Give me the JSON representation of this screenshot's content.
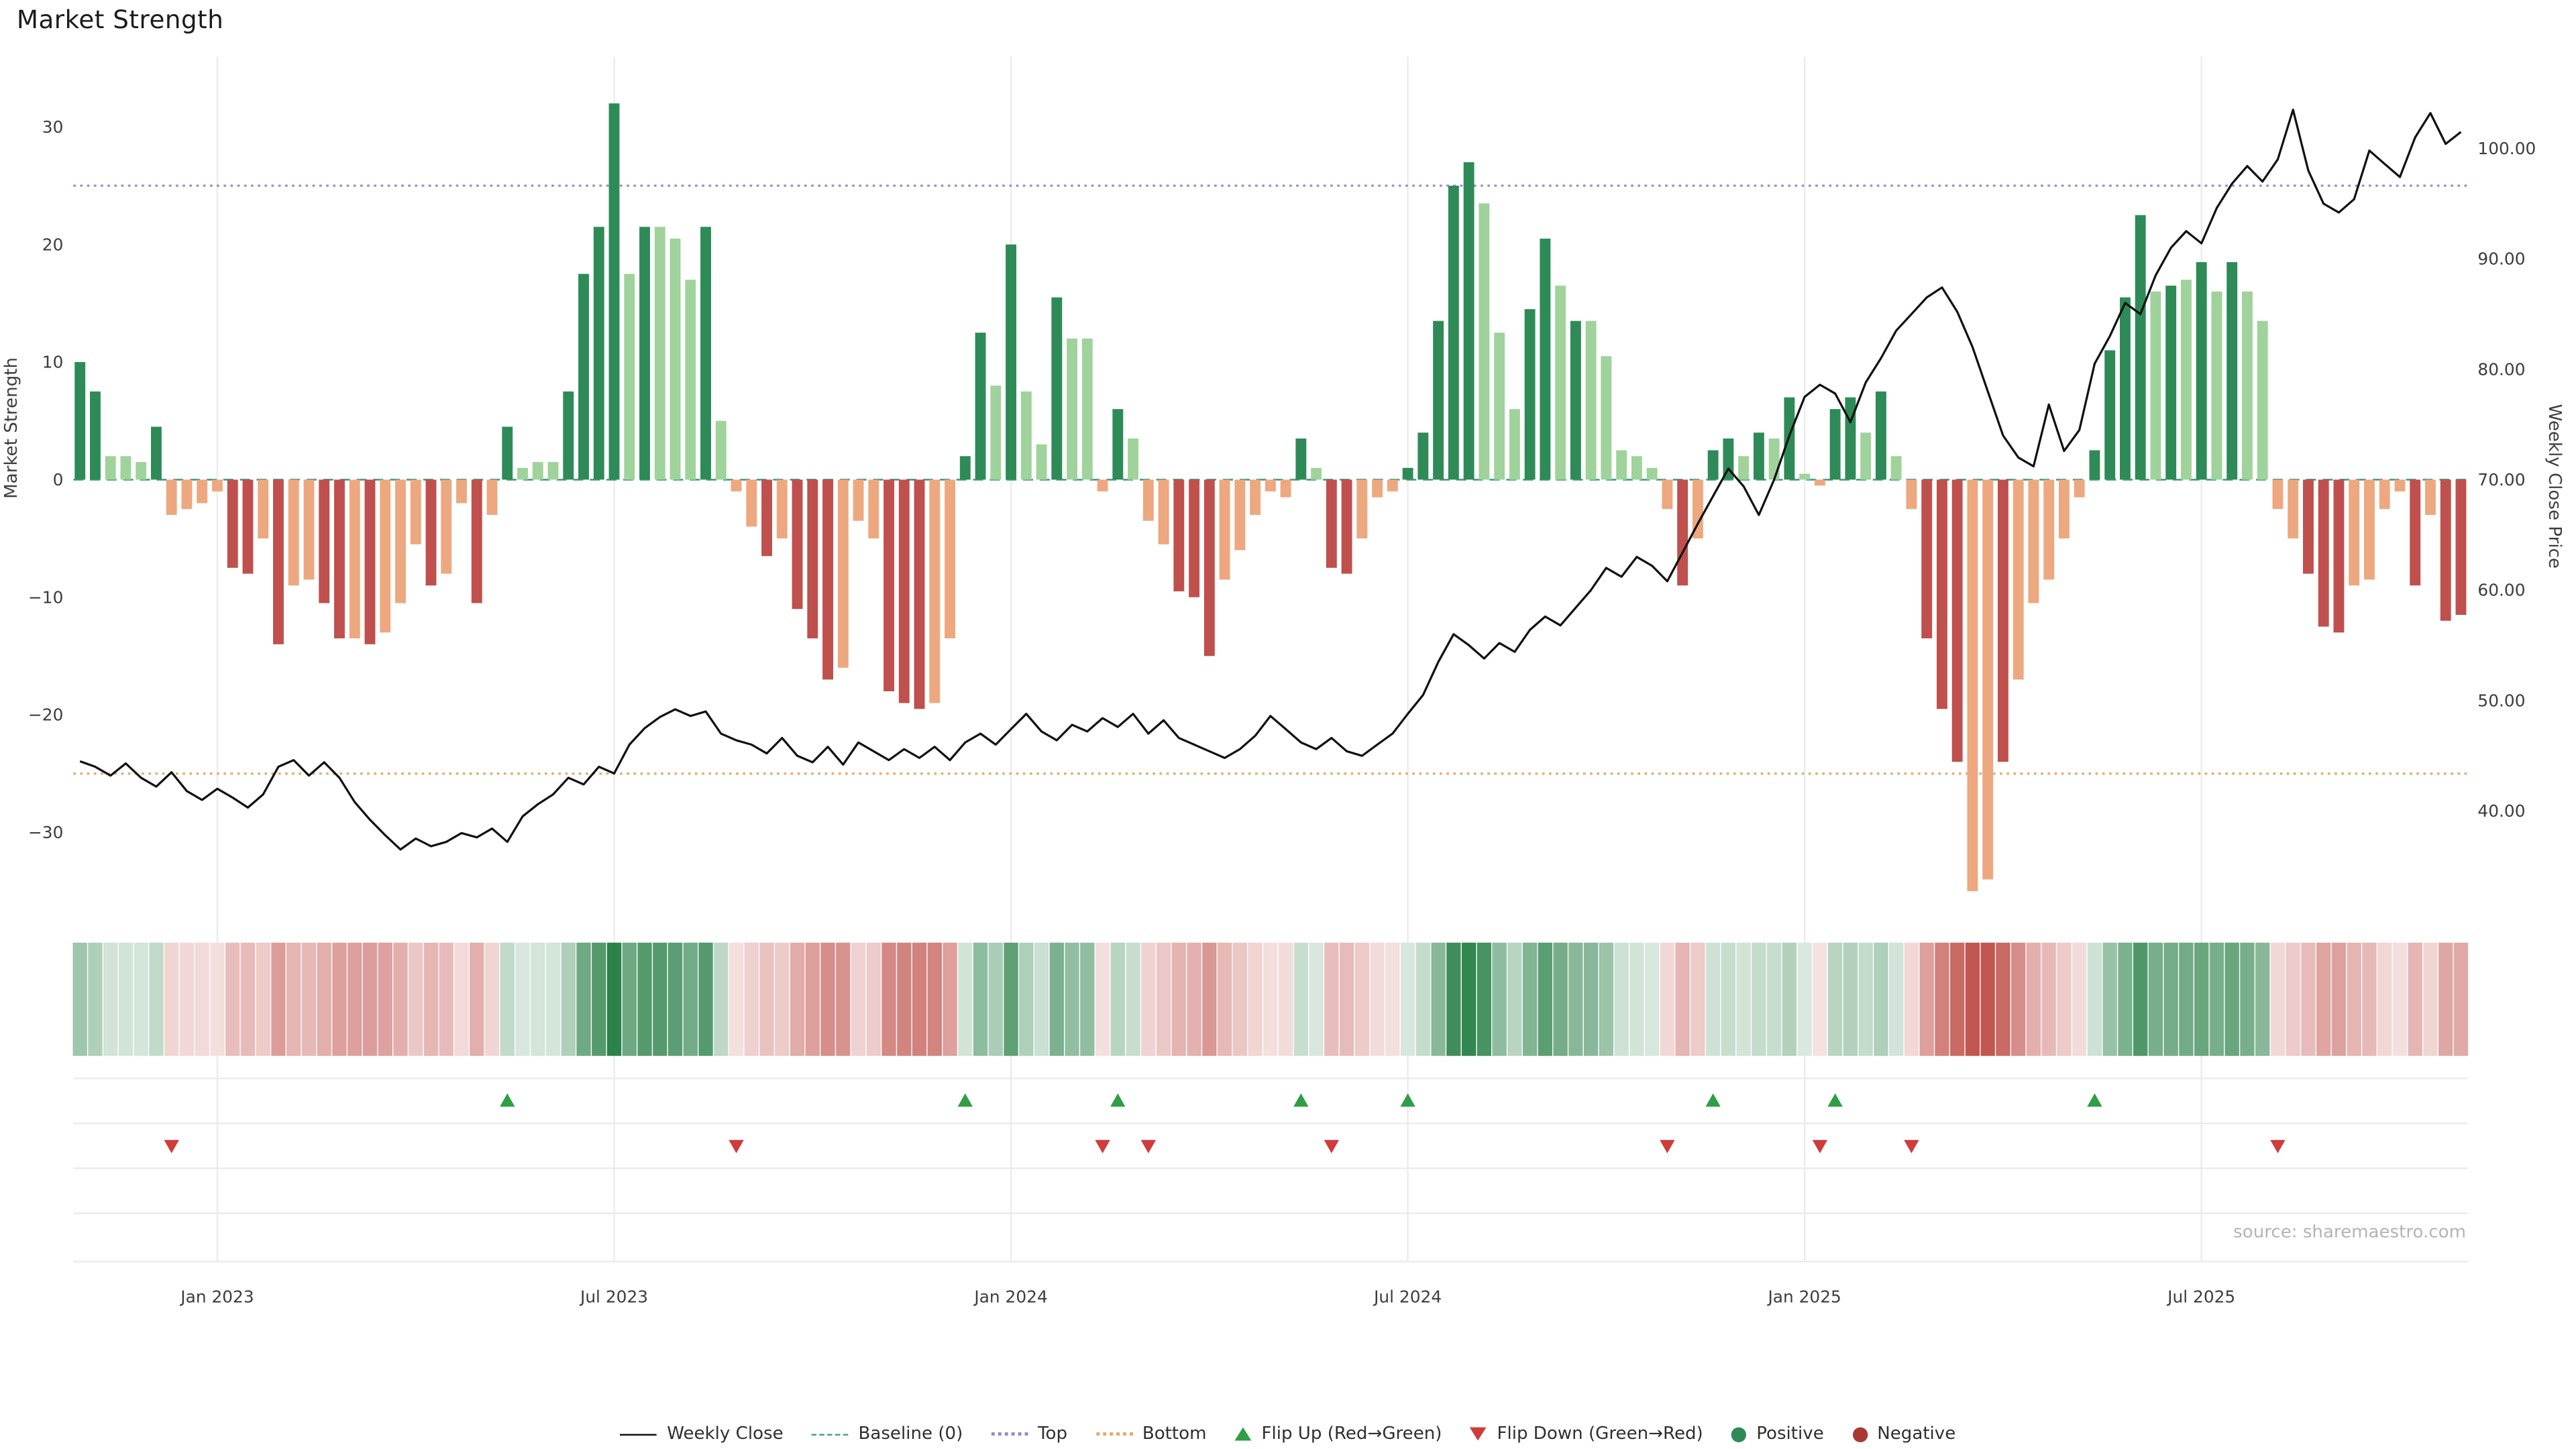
{
  "title": "Market Strength",
  "source": "source: sharemaestro.com",
  "axes": {
    "left_label": "Market Strength",
    "right_label": "Weekly Close Price",
    "left_ticks": [
      {
        "label": "30",
        "value": 30
      },
      {
        "label": "20",
        "value": 20
      },
      {
        "label": "10",
        "value": 10
      },
      {
        "label": "0",
        "value": 0
      },
      {
        "label": "−10",
        "value": -10
      },
      {
        "label": "−20",
        "value": -20
      },
      {
        "label": "−30",
        "value": -30
      }
    ],
    "right_ticks": [
      {
        "label": "100.00",
        "value": 100
      },
      {
        "label": "90.00",
        "value": 90
      },
      {
        "label": "80.00",
        "value": 80
      },
      {
        "label": "70.00",
        "value": 70
      },
      {
        "label": "60.00",
        "value": 60
      },
      {
        "label": "50.00",
        "value": 50
      },
      {
        "label": "40.00",
        "value": 40
      }
    ],
    "x_ticks": [
      {
        "label": "Jan 2023",
        "index": 9
      },
      {
        "label": "Jul 2023",
        "index": 35
      },
      {
        "label": "Jan 2024",
        "index": 61
      },
      {
        "label": "Jul 2024",
        "index": 87
      },
      {
        "label": "Jan 2025",
        "index": 113
      },
      {
        "label": "Jul 2025",
        "index": 139
      }
    ]
  },
  "colors": {
    "positive_strong": "#2e8b57",
    "positive_weak": "#9fd39b",
    "negative_strong": "#c0504d",
    "negative_weak": "#eda87f",
    "weekly_close_line": "#111111",
    "baseline": "#4aa08a",
    "top_line": "#918dcb",
    "bottom_line": "#e3a96d",
    "flip_up": "#2f9e44",
    "flip_down": "#d03b3b",
    "positive_dot": "#2e8b57",
    "negative_dot": "#aa3832",
    "grid": "#ececec"
  },
  "chart_data": {
    "type": "bar+line",
    "title": "Market Strength",
    "ylabel_left": "Market Strength",
    "ylabel_right": "Weekly Close Price",
    "ylim_left": [
      -38,
      36
    ],
    "ylim_right": [
      36.5,
      109
    ],
    "baseline": 0,
    "top_line": 25,
    "bottom_line": -25,
    "n_weeks": 157,
    "strength": [
      10,
      7.5,
      2,
      2,
      1.5,
      4.5,
      -3,
      -2.5,
      -2,
      -1,
      -7.5,
      -8,
      -5,
      -14,
      -9,
      -8.5,
      -10.5,
      -13.5,
      -13.5,
      -14,
      -13,
      -10.5,
      -5.5,
      -9,
      -8,
      -2,
      -10.5,
      -3,
      4.5,
      1,
      1.5,
      1.5,
      7.5,
      17.5,
      21.5,
      32,
      17.5,
      21.5,
      21.5,
      20.5,
      17,
      21.5,
      5,
      -1,
      -4,
      -6.5,
      -5,
      -11,
      -13.5,
      -17,
      -16,
      -3.5,
      -5,
      -18,
      -19,
      -19.5,
      -19,
      -13.5,
      2,
      12.5,
      8,
      20,
      7.5,
      3,
      15.5,
      12,
      12,
      -1,
      6,
      3.5,
      -3.5,
      -5.5,
      -9.5,
      -10,
      -15,
      -8.5,
      -6,
      -3,
      -1,
      -1.5,
      3.5,
      1,
      -7.5,
      -8,
      -5,
      -1.5,
      -1,
      1,
      4,
      13.5,
      25,
      27,
      23.5,
      12.5,
      6,
      14.5,
      20.5,
      16.5,
      13.5,
      13.5,
      10.5,
      2.5,
      2,
      1,
      -2.5,
      -9,
      -5,
      2.5,
      3.5,
      2,
      4,
      3.5,
      7,
      0.5,
      -0.5,
      6,
      7,
      4,
      7.5,
      2,
      -2.5,
      -13.5,
      -19.5,
      -24,
      -35,
      -34,
      -24,
      -17,
      -10.5,
      -8.5,
      -5,
      -1.5,
      2.5,
      11,
      15.5,
      22.5,
      16,
      16.5,
      17,
      18.5,
      16,
      18.5,
      16,
      13.5,
      -2.5,
      -5,
      -8,
      -12.5,
      -13,
      -9,
      -8.5,
      -2.5,
      -1,
      -9,
      -3,
      -12,
      -11.5
    ],
    "shade_segments": [
      "ddllld",
      "llllddldllddldllldlldl",
      "dlllddddldllldl",
      "lldldddllldddll",
      "ddldlldll",
      "ldl",
      "lldddlllll",
      "dl",
      "ddlll",
      "dddddlllddldlllll",
      "ldl",
      "ddldldllddldl",
      "ldddlldlllll",
      "ddddldldldll",
      "lldddlllldldd"
    ],
    "weekly_close": [
      44.5,
      44.0,
      43.2,
      44.3,
      43.0,
      42.2,
      43.5,
      41.8,
      41.0,
      42.0,
      41.2,
      40.3,
      41.5,
      44.0,
      44.6,
      43.2,
      44.4,
      43.0,
      40.8,
      39.2,
      37.8,
      36.5,
      37.5,
      36.8,
      37.2,
      38.0,
      37.6,
      38.4,
      37.2,
      39.5,
      40.6,
      41.5,
      43.0,
      42.4,
      44.0,
      43.4,
      46.0,
      47.5,
      48.5,
      49.2,
      48.6,
      49.0,
      47.0,
      46.4,
      46.0,
      45.2,
      46.6,
      45.0,
      44.4,
      45.8,
      44.2,
      46.2,
      45.4,
      44.6,
      45.6,
      44.8,
      45.8,
      44.6,
      46.2,
      47.0,
      46.0,
      47.4,
      48.8,
      47.2,
      46.4,
      47.8,
      47.2,
      48.4,
      47.6,
      48.8,
      47.0,
      48.2,
      46.6,
      46.0,
      45.4,
      44.8,
      45.6,
      46.8,
      48.6,
      47.4,
      46.2,
      45.6,
      46.6,
      45.4,
      45.0,
      46.0,
      47.0,
      48.8,
      50.5,
      53.5,
      56.0,
      55.0,
      53.8,
      55.2,
      54.4,
      56.4,
      57.6,
      56.8,
      58.4,
      60.0,
      62.0,
      61.2,
      63.0,
      62.2,
      60.8,
      63.4,
      66.0,
      68.5,
      71.0,
      69.4,
      66.8,
      70.0,
      74.0,
      77.5,
      78.6,
      77.8,
      75.2,
      78.8,
      81.0,
      83.5,
      85.0,
      86.5,
      87.4,
      85.2,
      82.0,
      78.0,
      74.0,
      72.0,
      71.2,
      76.8,
      72.6,
      74.5,
      80.5,
      83.0,
      86.0,
      85.0,
      88.5,
      91.0,
      92.5,
      91.4,
      94.6,
      96.8,
      98.4,
      97.0,
      99.0,
      103.5,
      98.0,
      95.0,
      94.2,
      95.4,
      99.8,
      98.6,
      97.4,
      101.0,
      103.2,
      100.4,
      101.5
    ],
    "flip_up_indices": [
      28,
      58,
      68,
      80,
      87,
      107,
      115,
      132
    ],
    "flip_down_indices": [
      6,
      43,
      67,
      70,
      82,
      104,
      114,
      120,
      144
    ],
    "legend_position": "bottom-center",
    "grid": "light vertical at half-year ticks"
  },
  "legend": [
    {
      "label": "Weekly Close",
      "glyph": "solid-line",
      "color": "#111111"
    },
    {
      "label": "Baseline (0)",
      "glyph": "dashed-line",
      "color": "#4aa08a"
    },
    {
      "label": "Top",
      "glyph": "dotted-line",
      "color": "#918dcb"
    },
    {
      "label": "Bottom",
      "glyph": "dotted-line",
      "color": "#e3a96d"
    },
    {
      "label": "Flip Up (Red→Green)",
      "glyph": "triangle-up",
      "color": "#2f9e44"
    },
    {
      "label": "Flip Down (Green→Red)",
      "glyph": "triangle-down",
      "color": "#d03b3b"
    },
    {
      "label": "Positive",
      "glyph": "circle",
      "color": "#2e8b57"
    },
    {
      "label": "Negative",
      "glyph": "circle",
      "color": "#aa3832"
    }
  ]
}
